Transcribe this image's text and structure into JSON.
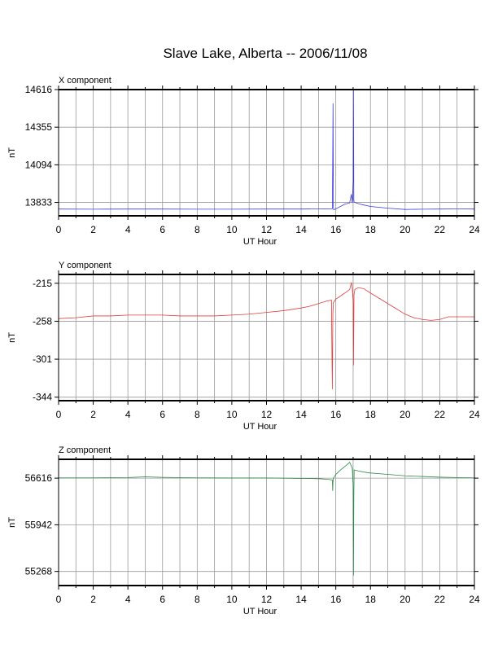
{
  "title": "Slave Lake, Alberta -- 2006/11/08",
  "colors": {
    "x": "#3b3bdc",
    "y": "#e23b3b",
    "z": "#2d8a4a",
    "grid": "#9a9a9a",
    "frame": "#000000"
  },
  "chart_data": [
    {
      "type": "line",
      "title": "X component",
      "xlabel": "UT Hour",
      "ylabel": "nT",
      "xlim": [
        0,
        24
      ],
      "ylim": [
        13740,
        14616
      ],
      "xticks": [
        0,
        2,
        4,
        6,
        8,
        10,
        12,
        14,
        16,
        18,
        20,
        22,
        24
      ],
      "yticks": [
        13833,
        14094,
        14355,
        14616
      ],
      "grid": true,
      "series": [
        {
          "color": "#3b3bdc",
          "x": [
            0,
            2,
            4,
            6,
            8,
            10,
            12,
            14,
            15,
            15.8,
            15.82,
            15.84,
            15.86,
            15.88,
            16.0,
            16.5,
            16.8,
            16.9,
            16.95,
            17.0,
            17.02,
            17.04,
            17.06,
            17.2,
            17.5,
            18,
            19,
            20,
            21,
            22,
            23,
            24
          ],
          "y": [
            13787,
            13786,
            13787,
            13787,
            13786,
            13786,
            13787,
            13787,
            13788,
            13789,
            14090,
            14520,
            13800,
            13782,
            13788,
            13820,
            13830,
            13890,
            13830,
            13980,
            14610,
            13850,
            13835,
            13828,
            13818,
            13805,
            13793,
            13784,
            13786,
            13787,
            13788,
            13787
          ]
        }
      ]
    },
    {
      "type": "line",
      "title": "Y component",
      "xlabel": "UT Hour",
      "ylabel": "nT",
      "xlim": [
        0,
        24
      ],
      "ylim": [
        -348,
        -205
      ],
      "xticks": [
        0,
        2,
        4,
        6,
        8,
        10,
        12,
        14,
        16,
        18,
        20,
        22,
        24
      ],
      "yticks": [
        -215,
        -258,
        -301,
        -344
      ],
      "grid": true,
      "series": [
        {
          "color": "#e23b3b",
          "x": [
            0,
            1,
            2,
            3,
            4,
            5,
            6,
            7,
            8,
            9,
            10,
            11,
            12,
            13,
            14,
            14.5,
            15,
            15.5,
            15.75,
            15.78,
            15.8,
            15.83,
            15.86,
            16.0,
            16.3,
            16.6,
            16.8,
            16.9,
            16.95,
            17.0,
            17.02,
            17.05,
            17.1,
            17.3,
            17.6,
            18,
            18.5,
            19,
            19.5,
            20,
            20.5,
            21,
            21.5,
            22,
            22.5,
            23,
            24
          ],
          "y": [
            -255,
            -254,
            -252,
            -252,
            -251,
            -251,
            -251,
            -252,
            -252,
            -252,
            -251,
            -250,
            -248,
            -246,
            -243,
            -241,
            -238,
            -235,
            -234,
            -300,
            -335,
            -250,
            -237,
            -233,
            -229,
            -225,
            -222,
            -214,
            -220,
            -236,
            -308,
            -228,
            -222,
            -220,
            -221,
            -226,
            -232,
            -238,
            -244,
            -250,
            -254,
            -256,
            -257,
            -256,
            -253,
            -253,
            -253
          ]
        }
      ]
    },
    {
      "type": "line",
      "title": "Z component",
      "xlabel": "UT Hour",
      "ylabel": "nT",
      "xlim": [
        0,
        24
      ],
      "ylim": [
        55064,
        56888
      ],
      "xticks": [
        0,
        2,
        4,
        6,
        8,
        10,
        12,
        14,
        16,
        18,
        20,
        22,
        24
      ],
      "yticks": [
        55268,
        55942,
        56616
      ],
      "grid": true,
      "series": [
        {
          "color": "#2d8a4a",
          "x": [
            0,
            2,
            4,
            5,
            6,
            8,
            10,
            12,
            14,
            15,
            15.5,
            15.8,
            15.82,
            15.84,
            15.86,
            16.0,
            16.3,
            16.6,
            16.8,
            16.9,
            16.95,
            17.0,
            17.02,
            17.04,
            17.06,
            17.3,
            17.6,
            18,
            19,
            20,
            21,
            22,
            23,
            24
          ],
          "y": [
            56620,
            56620,
            56625,
            56635,
            56628,
            56620,
            56618,
            56618,
            56612,
            56608,
            56600,
            56590,
            56430,
            56560,
            56615,
            56670,
            56740,
            56800,
            56845,
            56790,
            56760,
            56500,
            55210,
            56350,
            56735,
            56720,
            56705,
            56690,
            56670,
            56650,
            56640,
            56630,
            56625,
            56620
          ]
        }
      ]
    }
  ]
}
